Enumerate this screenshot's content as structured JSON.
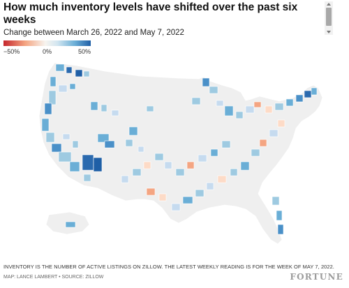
{
  "header": {
    "title": "How much inventory levels have shifted over the past six weeks",
    "subtitle": "Change between March 26, 2022 and May 7, 2022"
  },
  "legend": {
    "min_label": "−50%",
    "mid_label": "0%",
    "max_label": "50%",
    "min_color": "#c5262c",
    "mid_color": "#f7f4ef",
    "max_color": "#1f5fa6"
  },
  "map": {
    "region": "United States counties / metro areas",
    "base_color": "#efefef",
    "border_color": "#ffffff"
  },
  "footer": {
    "note": "INVENTORY IS THE NUMBER OF ACTIVE LISTINGS ON ZILLOW. THE LATEST WEEKLY READING IS FOR THE WEEK OF MAY 7, 2022.",
    "credit": "MAP: LANCE LAMBERT • SOURCE: ZILLOW",
    "logo": "FORTUNE"
  }
}
